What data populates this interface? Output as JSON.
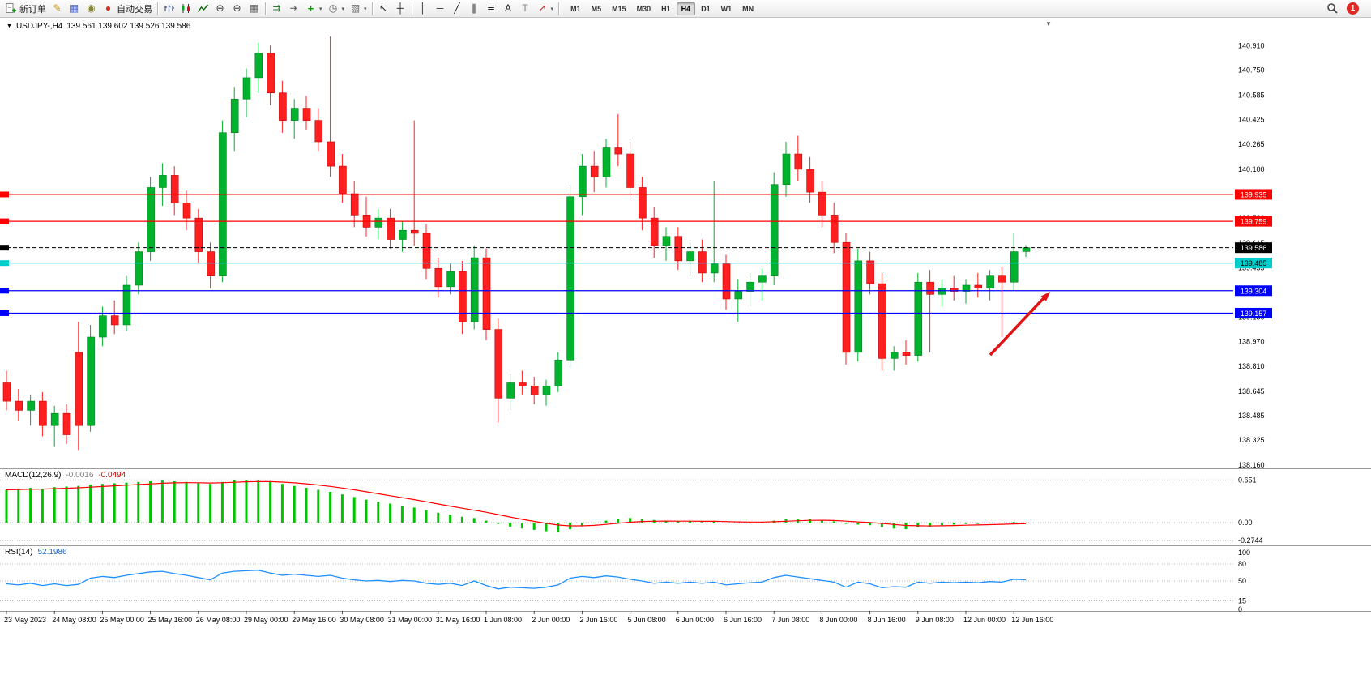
{
  "toolbar": {
    "items": [
      {
        "name": "new-order-button",
        "icon": "new-order",
        "label": "新订单"
      },
      {
        "name": "metaeditor-button",
        "icon": "metaeditor"
      },
      {
        "name": "market-watch-button",
        "icon": "market-watch"
      },
      {
        "name": "navigator-button",
        "icon": "navigator"
      },
      {
        "name": "autotrading-button",
        "icon": "autotrading",
        "label": "自动交易"
      },
      {
        "type": "sep"
      },
      {
        "name": "bar-chart-button",
        "icon": "bar-chart"
      },
      {
        "name": "candlestick-chart-button",
        "icon": "candlestick-chart"
      },
      {
        "name": "line-chart-button",
        "icon": "line-chart"
      },
      {
        "name": "zoom-in-button",
        "icon": "zoom-in"
      },
      {
        "name": "zoom-out-button",
        "icon": "zoom-out"
      },
      {
        "name": "tile-windows-button",
        "icon": "tile-windows"
      },
      {
        "type": "sep"
      },
      {
        "name": "auto-scroll-button",
        "icon": "auto-scroll"
      },
      {
        "name": "chart-shift-button",
        "icon": "chart-shift"
      },
      {
        "name": "indicators-button",
        "icon": "indicators",
        "caret": true
      },
      {
        "name": "periods-button",
        "icon": "periods",
        "caret": true
      },
      {
        "name": "templates-button",
        "icon": "templates",
        "caret": true
      },
      {
        "type": "sep"
      },
      {
        "name": "cursor-button",
        "icon": "cursor"
      },
      {
        "name": "crosshair-button",
        "icon": "crosshair"
      },
      {
        "type": "sep"
      },
      {
        "name": "vertical-line-button",
        "icon": "vertical-line"
      },
      {
        "name": "horizontal-line-button",
        "icon": "horizontal-line"
      },
      {
        "name": "trendline-button",
        "icon": "trendline"
      },
      {
        "name": "equidistant-channel-button",
        "icon": "equidistant-channel"
      },
      {
        "name": "fibonacci-button",
        "icon": "fibonacci"
      },
      {
        "name": "text-button",
        "icon": "text"
      },
      {
        "name": "text-label-button",
        "icon": "text-label"
      },
      {
        "name": "arrows-button",
        "icon": "arrows",
        "caret": true
      },
      {
        "type": "sep"
      }
    ],
    "timeframes": [
      "M1",
      "M5",
      "M15",
      "M30",
      "H1",
      "H4",
      "D1",
      "W1",
      "MN"
    ],
    "active_timeframe": "H4",
    "notification_count": "1"
  },
  "chart": {
    "title": "USDJPY-,H4",
    "ohlc_text": "139.561 139.602 139.526 139.586",
    "shift_marker": "▼",
    "hlines": [
      {
        "price": "139.935",
        "color": "#ff0000",
        "text_color": "#ffffff",
        "style": "solid"
      },
      {
        "price": "139.759",
        "color": "#ff0000",
        "text_color": "#ffffff",
        "style": "solid"
      },
      {
        "price": "139.485",
        "color": "#00cccc",
        "text_color": "#000000",
        "style": "solid"
      },
      {
        "price": "139.304",
        "color": "#0000ff",
        "text_color": "#ffffff",
        "style": "solid"
      },
      {
        "price": "139.157",
        "color": "#0000ff",
        "text_color": "#ffffff",
        "style": "solid"
      },
      {
        "price": "139.586",
        "color": "#000000",
        "text_color": "#ffffff",
        "style": "bid"
      }
    ],
    "arrow_color": "#e01414"
  },
  "chart_data": {
    "type": "candlestick",
    "symbol": "USDJPY-",
    "period": "H4",
    "current": {
      "open": "139.561",
      "high": "139.602",
      "low": "139.526",
      "close": "139.586"
    },
    "up_color": "#00b22d",
    "down_color": "#fe2020",
    "y_ticks": [
      "140.910",
      "140.750",
      "140.585",
      "140.425",
      "140.265",
      "140.100",
      "139.940",
      "139.780",
      "139.615",
      "139.455",
      "139.295",
      "139.130",
      "138.970",
      "138.810",
      "138.645",
      "138.485",
      "138.325",
      "138.160"
    ],
    "x_labels": [
      "23 May 2023",
      "24 May 08:00",
      "25 May 00:00",
      "25 May 16:00",
      "26 May 08:00",
      "29 May 00:00",
      "29 May 16:00",
      "30 May 08:00",
      "31 May 00:00",
      "31 May 16:00",
      "1 Jun 08:00",
      "2 Jun 00:00",
      "2 Jun 16:00",
      "5 Jun 08:00",
      "6 Jun 00:00",
      "6 Jun 16:00",
      "7 Jun 08:00",
      "8 Jun 00:00",
      "8 Jun 16:00",
      "9 Jun 08:00",
      "12 Jun 00:00",
      "12 Jun 16:00"
    ],
    "candles": [
      [
        138.7,
        138.78,
        138.52,
        138.58
      ],
      [
        138.58,
        138.66,
        138.45,
        138.52
      ],
      [
        138.52,
        138.62,
        138.42,
        138.58
      ],
      [
        138.58,
        138.64,
        138.35,
        138.42
      ],
      [
        138.42,
        138.55,
        138.28,
        138.5
      ],
      [
        138.5,
        138.56,
        138.3,
        138.36
      ],
      [
        138.9,
        139.1,
        138.26,
        138.42
      ],
      [
        138.42,
        139.08,
        138.38,
        139.0
      ],
      [
        139.0,
        139.2,
        138.94,
        139.14
      ],
      [
        139.14,
        139.24,
        139.02,
        139.08
      ],
      [
        139.08,
        139.4,
        139.04,
        139.34
      ],
      [
        139.34,
        139.62,
        139.28,
        139.56
      ],
      [
        139.56,
        140.05,
        139.5,
        139.98
      ],
      [
        139.98,
        140.14,
        139.86,
        140.06
      ],
      [
        140.06,
        140.12,
        139.8,
        139.88
      ],
      [
        139.88,
        139.96,
        139.7,
        139.78
      ],
      [
        139.78,
        139.84,
        139.48,
        139.56
      ],
      [
        139.56,
        139.62,
        139.32,
        139.4
      ],
      [
        139.4,
        140.42,
        139.36,
        140.34
      ],
      [
        140.34,
        140.64,
        140.22,
        140.56
      ],
      [
        140.56,
        140.76,
        140.44,
        140.7
      ],
      [
        140.7,
        140.93,
        140.6,
        140.86
      ],
      [
        140.86,
        140.91,
        140.52,
        140.6
      ],
      [
        140.6,
        140.68,
        140.34,
        140.42
      ],
      [
        140.42,
        140.56,
        140.3,
        140.5
      ],
      [
        140.5,
        140.58,
        140.36,
        140.42
      ],
      [
        140.42,
        140.5,
        140.22,
        140.28
      ],
      [
        140.28,
        140.97,
        140.05,
        140.12
      ],
      [
        140.12,
        140.2,
        139.88,
        139.94
      ],
      [
        139.94,
        140.02,
        139.72,
        139.8
      ],
      [
        139.8,
        139.92,
        139.66,
        139.72
      ],
      [
        139.72,
        139.84,
        139.64,
        139.78
      ],
      [
        139.78,
        139.84,
        139.58,
        139.64
      ],
      [
        139.64,
        139.76,
        139.56,
        139.7
      ],
      [
        139.7,
        140.42,
        139.6,
        139.68
      ],
      [
        139.68,
        139.74,
        139.38,
        139.45
      ],
      [
        139.45,
        139.52,
        139.26,
        139.33
      ],
      [
        139.33,
        139.48,
        139.28,
        139.43
      ],
      [
        139.43,
        139.5,
        139.02,
        139.1
      ],
      [
        139.1,
        139.6,
        139.05,
        139.52
      ],
      [
        139.52,
        139.58,
        138.98,
        139.05
      ],
      [
        139.05,
        139.12,
        138.44,
        138.6
      ],
      [
        138.6,
        138.76,
        138.52,
        138.7
      ],
      [
        138.7,
        138.78,
        138.62,
        138.68
      ],
      [
        138.68,
        138.74,
        138.56,
        138.62
      ],
      [
        138.62,
        138.72,
        138.55,
        138.68
      ],
      [
        138.68,
        138.9,
        138.64,
        138.85
      ],
      [
        138.85,
        140.0,
        138.8,
        139.92
      ],
      [
        139.92,
        140.2,
        139.8,
        140.12
      ],
      [
        140.12,
        140.22,
        139.95,
        140.05
      ],
      [
        140.05,
        140.3,
        139.98,
        140.24
      ],
      [
        140.24,
        140.46,
        140.12,
        140.2
      ],
      [
        140.2,
        140.28,
        139.9,
        139.98
      ],
      [
        139.98,
        140.05,
        139.7,
        139.78
      ],
      [
        139.78,
        139.85,
        139.52,
        139.6
      ],
      [
        139.6,
        139.72,
        139.5,
        139.66
      ],
      [
        139.66,
        139.72,
        139.44,
        139.5
      ],
      [
        139.5,
        139.62,
        139.4,
        139.56
      ],
      [
        139.56,
        139.64,
        139.36,
        139.42
      ],
      [
        139.42,
        140.02,
        139.36,
        139.48
      ],
      [
        139.48,
        139.54,
        139.18,
        139.25
      ],
      [
        139.25,
        139.38,
        139.1,
        139.3
      ],
      [
        139.3,
        139.42,
        139.2,
        139.36
      ],
      [
        139.36,
        139.45,
        139.24,
        139.4
      ],
      [
        139.4,
        140.08,
        139.34,
        140.0
      ],
      [
        140.0,
        140.28,
        139.92,
        140.2
      ],
      [
        140.2,
        140.32,
        140.02,
        140.1
      ],
      [
        140.1,
        140.18,
        139.88,
        139.95
      ],
      [
        139.95,
        140.02,
        139.72,
        139.8
      ],
      [
        139.8,
        139.88,
        139.55,
        139.62
      ],
      [
        139.62,
        139.68,
        138.82,
        138.9
      ],
      [
        138.9,
        139.58,
        138.84,
        139.5
      ],
      [
        139.5,
        139.56,
        139.28,
        139.35
      ],
      [
        139.35,
        139.42,
        138.78,
        138.86
      ],
      [
        138.86,
        138.94,
        138.78,
        138.9
      ],
      [
        138.9,
        138.98,
        138.82,
        138.88
      ],
      [
        138.88,
        139.42,
        138.84,
        139.36
      ],
      [
        139.36,
        139.44,
        138.9,
        139.28
      ],
      [
        139.28,
        139.38,
        139.2,
        139.32
      ],
      [
        139.32,
        139.4,
        139.24,
        139.3
      ],
      [
        139.3,
        139.38,
        139.22,
        139.34
      ],
      [
        139.34,
        139.42,
        139.26,
        139.32
      ],
      [
        139.32,
        139.44,
        139.24,
        139.4
      ],
      [
        139.4,
        139.46,
        139.0,
        139.36
      ],
      [
        139.36,
        139.68,
        139.3,
        139.56
      ],
      [
        139.561,
        139.602,
        139.526,
        139.586
      ]
    ],
    "indicators": {
      "macd": {
        "label": "MACD(12,26,9)",
        "value_main": "-0.0016",
        "value_signal": "-0.0494",
        "scale": [
          "0.651",
          "0.00",
          "-0.2744"
        ],
        "signal_period": 9,
        "histogram_color": "#00c400",
        "signal_color": "#ff0000",
        "histogram": [
          0.5,
          0.52,
          0.53,
          0.52,
          0.54,
          0.55,
          0.56,
          0.58,
          0.59,
          0.6,
          0.61,
          0.62,
          0.63,
          0.64,
          0.63,
          0.62,
          0.6,
          0.59,
          0.62,
          0.645,
          0.651,
          0.64,
          0.62,
          0.59,
          0.56,
          0.53,
          0.5,
          0.47,
          0.43,
          0.39,
          0.35,
          0.32,
          0.29,
          0.26,
          0.23,
          0.19,
          0.15,
          0.12,
          0.09,
          0.07,
          0.03,
          -0.02,
          -0.06,
          -0.09,
          -0.11,
          -0.13,
          -0.14,
          -0.1,
          -0.05,
          -0.01,
          0.03,
          0.06,
          0.07,
          0.06,
          0.04,
          0.03,
          0.02,
          0.02,
          0.01,
          0.02,
          0.0,
          -0.01,
          0.0,
          0.01,
          0.03,
          0.05,
          0.06,
          0.06,
          0.04,
          0.02,
          -0.02,
          -0.03,
          -0.04,
          -0.07,
          -0.09,
          -0.1,
          -0.07,
          -0.06,
          -0.04,
          -0.03,
          -0.02,
          -0.02,
          -0.01,
          -0.01,
          0.01,
          -0.0016
        ]
      },
      "rsi": {
        "label": "RSI(14)",
        "value": "52.1986",
        "scale": [
          "100",
          "80",
          "50",
          "15",
          "0"
        ],
        "levels": [
          80,
          50,
          15
        ],
        "color": "#1e90ff",
        "values": [
          45,
          43,
          46,
          42,
          45,
          42,
          44,
          55,
          58,
          56,
          60,
          63,
          66,
          67,
          63,
          60,
          56,
          52,
          64,
          67,
          68,
          69,
          64,
          60,
          62,
          60,
          58,
          60,
          55,
          52,
          50,
          51,
          49,
          51,
          50,
          46,
          44,
          46,
          42,
          50,
          42,
          36,
          39,
          38,
          37,
          39,
          43,
          55,
          58,
          56,
          59,
          57,
          53,
          50,
          46,
          48,
          46,
          48,
          46,
          48,
          43,
          45,
          47,
          48,
          56,
          60,
          57,
          54,
          51,
          48,
          39,
          48,
          45,
          38,
          40,
          39,
          48,
          46,
          48,
          47,
          48,
          47,
          49,
          48,
          53,
          52.2
        ]
      }
    }
  }
}
